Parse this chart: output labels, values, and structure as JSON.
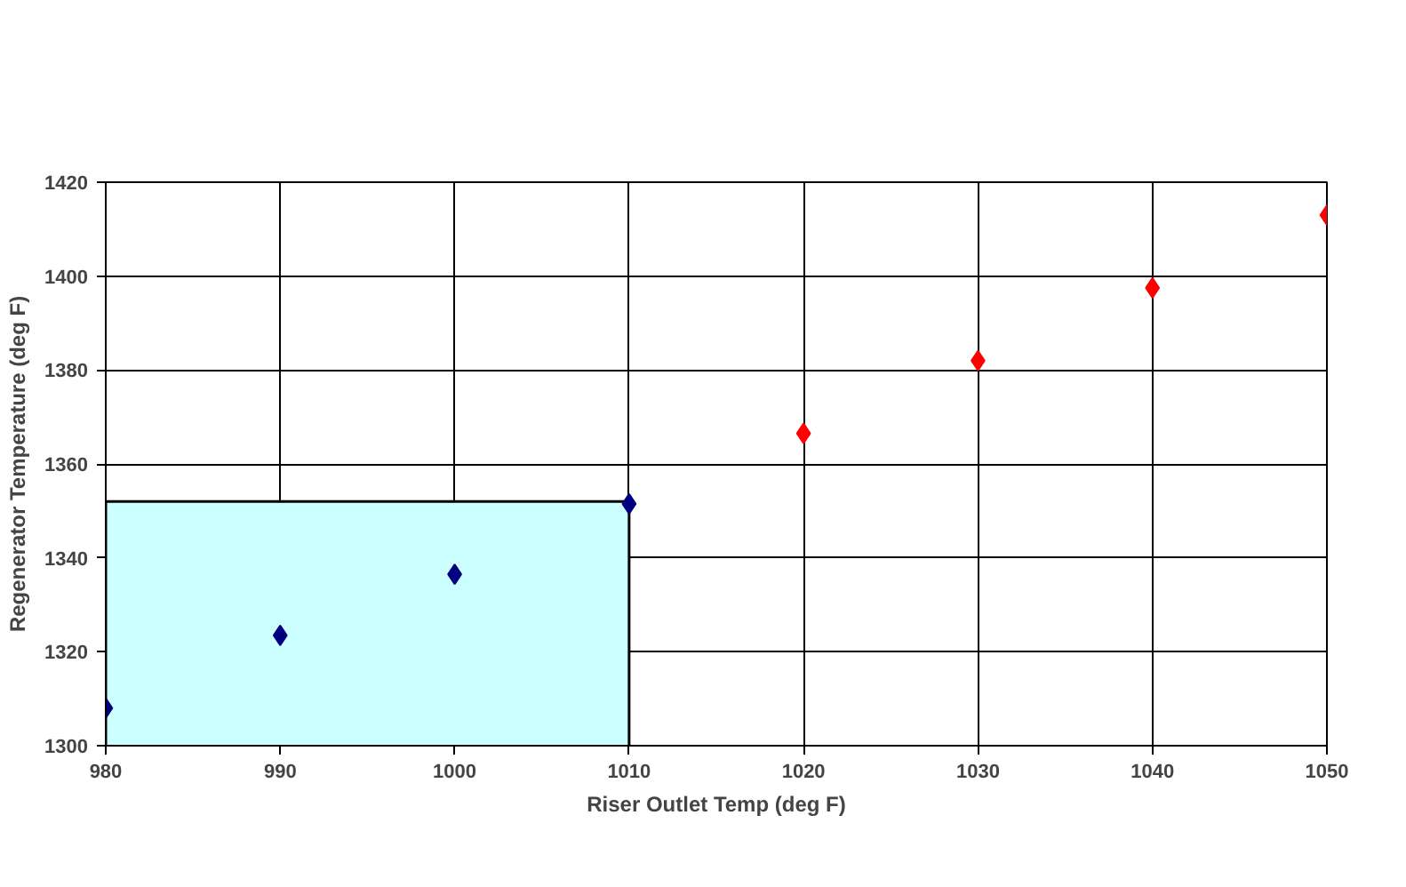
{
  "chart_data": {
    "type": "scatter",
    "xlabel": "Riser Outlet Temp (deg F)",
    "ylabel": "Regenerator Temperature (deg F)",
    "xlim": [
      980,
      1050
    ],
    "xticks": [
      980,
      990,
      1000,
      1010,
      1020,
      1030,
      1040,
      1050
    ],
    "ylim": [
      1300,
      1420
    ],
    "yticks": [
      1300,
      1320,
      1340,
      1360,
      1380,
      1400,
      1420
    ],
    "grid": true,
    "marker": "diamond",
    "series": [
      {
        "type": "area",
        "marker": "none",
        "color": "#ccffff",
        "x": [
          980,
          1010
        ],
        "values": [
          1352,
          1352
        ]
      },
      {
        "color": "#000080",
        "x": [
          980,
          990,
          1000,
          1010
        ],
        "values": [
          1308,
          1323.5,
          1336.5,
          1351.5
        ]
      },
      {
        "color": "#ff0000",
        "x": [
          1020,
          1030,
          1040,
          1050
        ],
        "values": [
          1366.5,
          1382,
          1397.5,
          1413
        ]
      }
    ]
  }
}
